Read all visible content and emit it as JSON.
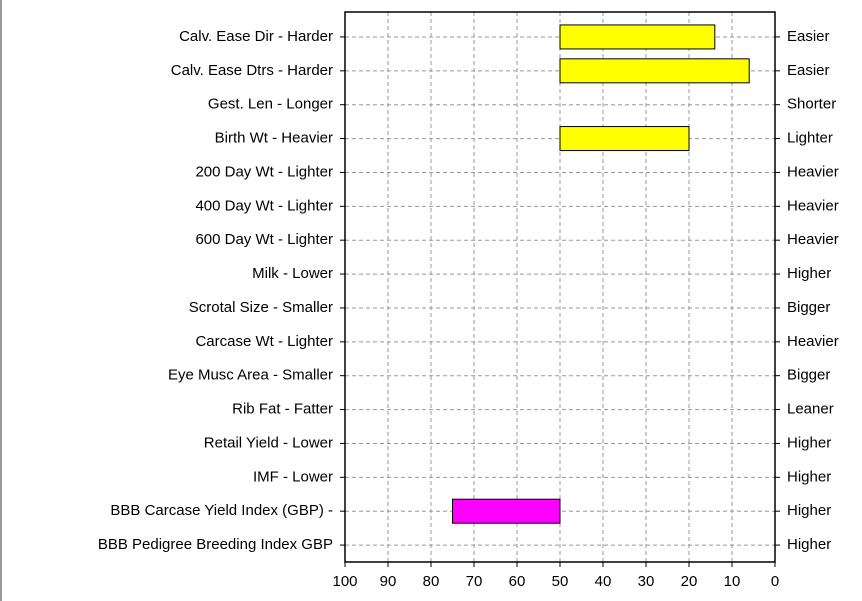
{
  "chart_data": {
    "type": "bar",
    "orientation": "horizontal",
    "categories": [
      "Calv. Ease Dir - Harder",
      "Calv. Ease Dtrs - Harder",
      "Gest. Len - Longer",
      "Birth Wt - Heavier",
      "200 Day Wt - Lighter",
      "400 Day Wt - Lighter",
      "600 Day Wt - Lighter",
      "Milk - Lower",
      "Scrotal Size - Smaller",
      "Carcase Wt - Lighter",
      "Eye Musc Area - Smaller",
      "Rib Fat - Fatter",
      "Retail Yield - Lower",
      "IMF - Lower",
      "BBB Carcase Yield Index (GBP) -",
      "BBB Pedigree Breeding Index GBP"
    ],
    "right_labels": [
      "Easier",
      "Easier",
      "Shorter",
      "Lighter",
      "Heavier",
      "Heavier",
      "Heavier",
      "Higher",
      "Bigger",
      "Heavier",
      "Bigger",
      "Leaner",
      "Higher",
      "Higher",
      "Higher",
      "Higher"
    ],
    "values": [
      14,
      6,
      null,
      20,
      null,
      null,
      null,
      null,
      null,
      null,
      null,
      null,
      null,
      null,
      75,
      null
    ],
    "colors": [
      "#ffff00",
      "#ffff00",
      null,
      "#ffff00",
      null,
      null,
      null,
      null,
      null,
      null,
      null,
      null,
      null,
      null,
      "#ff00ff",
      null
    ],
    "xlim": [
      100,
      0
    ],
    "xticks": [
      100,
      90,
      80,
      70,
      60,
      50,
      40,
      30,
      20,
      10,
      0
    ],
    "grid": true
  }
}
